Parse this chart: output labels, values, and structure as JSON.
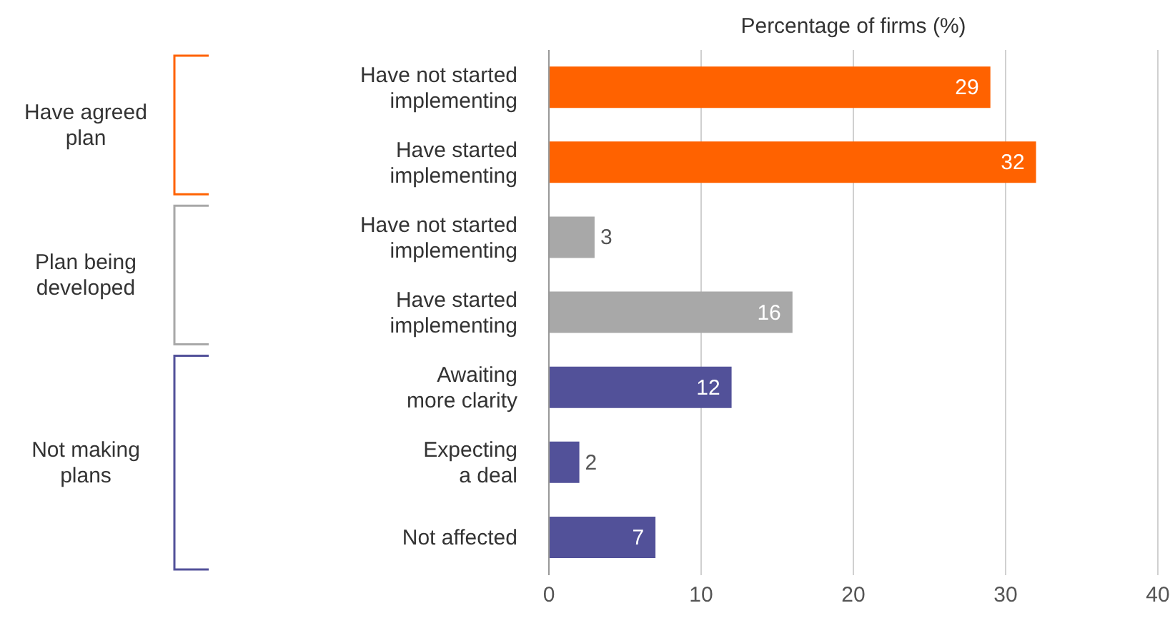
{
  "chart_data": {
    "type": "bar",
    "orientation": "horizontal",
    "xlabel": "Percentage of firms (%)",
    "categories": [
      "Have not started\nimplementing",
      "Have started\nimplementing",
      "Have not started\nimplementing",
      "Have started\nimplementing",
      "Awaiting\nmore clarity",
      "Expecting\na deal",
      "Not affected"
    ],
    "values": [
      29,
      32,
      3,
      16,
      12,
      2,
      7
    ],
    "colors": [
      "#ff6200",
      "#ff6200",
      "#a8a8a8",
      "#a8a8a8",
      "#525199",
      "#525199",
      "#525199"
    ],
    "xlim": [
      0,
      40
    ],
    "xticks": [
      0,
      10,
      20,
      30,
      40
    ],
    "grid": "x",
    "data_labels": true,
    "annotations": [
      "Have agreed\nplan",
      "Plan being\ndeveloped",
      "Not making\nplans"
    ]
  }
}
